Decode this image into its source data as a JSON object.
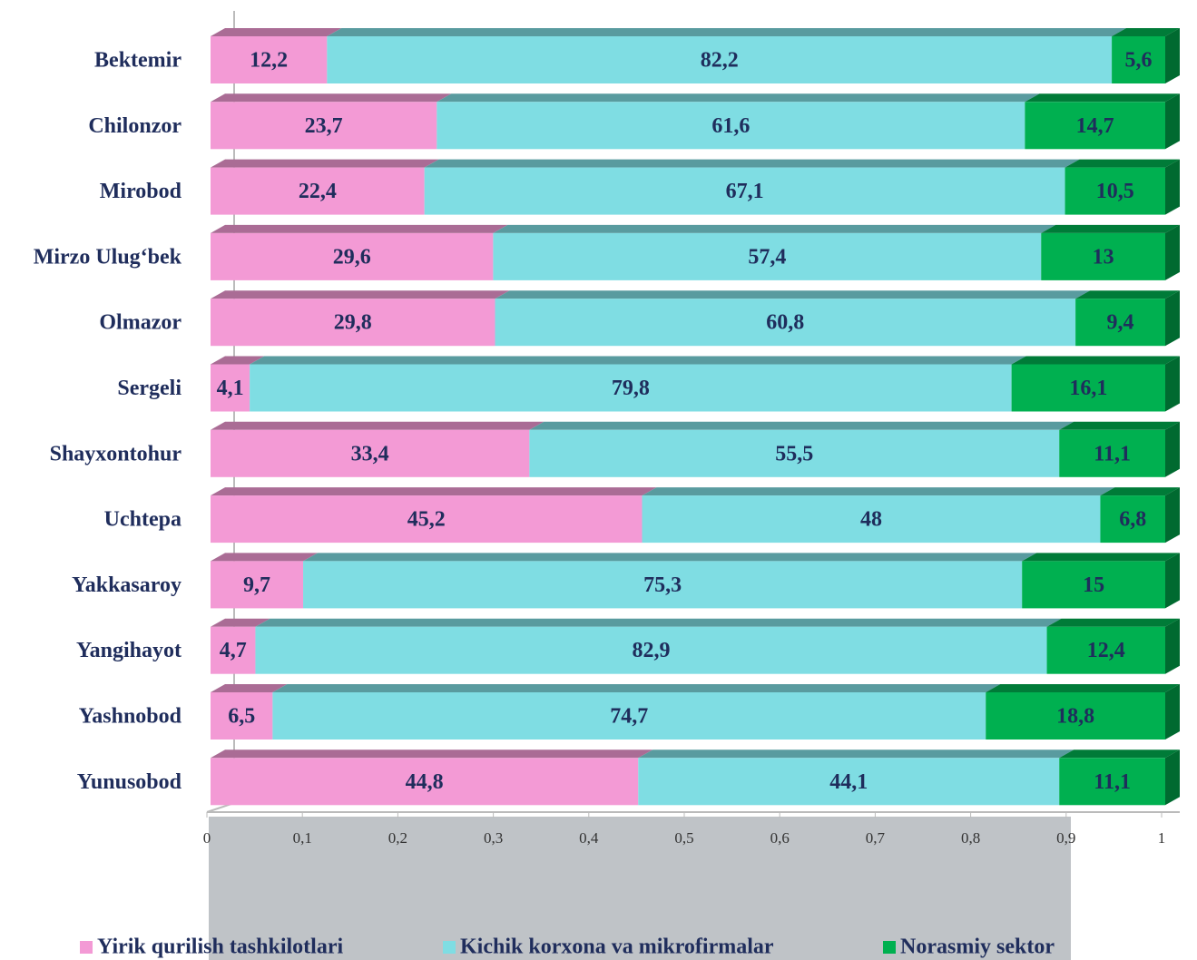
{
  "chart_data": {
    "type": "stacked-bar-horizontal",
    "categories": [
      "Bektemir",
      "Chilonzor",
      "Mirobod",
      "Mirzo Ulug‘bek",
      "Olmazor",
      "Sergeli",
      "Shayxontohur",
      "Uchtepa",
      "Yakkasaroy",
      "Yangihayot",
      "Yashnobod",
      "Yunusobod"
    ],
    "series": [
      {
        "name": "Yirik qurilish tashkilotlari",
        "color": "#f39ad5",
        "values": [
          0.122,
          0.237,
          0.224,
          0.296,
          0.298,
          0.041,
          0.334,
          0.452,
          0.097,
          0.047,
          0.065,
          0.448
        ],
        "value_labels": [
          "12,2",
          "23,7",
          "22,4",
          "29,6",
          "29,8",
          "4,1",
          "33,4",
          "45,2",
          "9,7",
          "4,7",
          "6,5",
          "44,8"
        ]
      },
      {
        "name": "Kichik korxona va mikrofirmalar",
        "color": "#7fdde3",
        "values": [
          0.822,
          0.616,
          0.671,
          0.574,
          0.608,
          0.798,
          0.555,
          0.48,
          0.753,
          0.829,
          0.747,
          0.441
        ],
        "value_labels": [
          "82,2",
          "61,6",
          "67,1",
          "57,4",
          "60,8",
          "79,8",
          "55,5",
          "48",
          "75,3",
          "82,9",
          "74,7",
          "44,1"
        ]
      },
      {
        "name": "Norasmiy sektor",
        "color": "#00b050",
        "values": [
          0.056,
          0.147,
          0.105,
          0.13,
          0.094,
          0.161,
          0.111,
          0.068,
          0.15,
          0.124,
          0.188,
          0.111
        ],
        "value_labels": [
          "5,6",
          "14,7",
          "10,5",
          "13",
          "9,4",
          "16,1",
          "11,1",
          "6,8",
          "15",
          "12,4",
          "18,8",
          "11,1"
        ]
      }
    ],
    "xlim": [
      0,
      1
    ],
    "xticks": [
      0,
      {
        "value": 0.1,
        "label": "0,1"
      },
      {
        "value": 0.2,
        "label": "0,2"
      },
      {
        "value": 0.3,
        "label": "0,3"
      },
      {
        "value": 0.4,
        "label": "0,4"
      },
      {
        "value": 0.5,
        "label": "0,5"
      },
      {
        "value": 0.6,
        "label": "0,6"
      },
      {
        "value": 0.7,
        "label": "0,7"
      },
      {
        "value": 0.8,
        "label": "0,8"
      },
      {
        "value": 0.9,
        "label": "0,9"
      },
      1
    ],
    "legend": "bottom"
  }
}
